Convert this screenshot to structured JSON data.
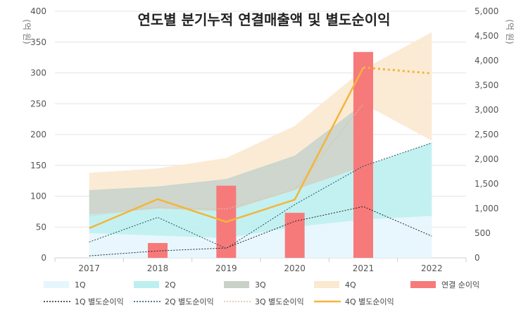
{
  "chart_data": {
    "type": "area",
    "title": "연도별 분기누적 연결매출액 및 별도순이익",
    "left_unit": "(억 원)",
    "right_unit": "(억 원)",
    "categories": [
      "2017",
      "2018",
      "2019",
      "2020",
      "2021",
      "2022"
    ],
    "ylim_left": [
      0,
      400
    ],
    "ylim_right": [
      0,
      5000
    ],
    "yticks_left": [
      "0",
      "50",
      "100",
      "150",
      "200",
      "250",
      "300",
      "350",
      "400"
    ],
    "yticks_right": [
      "0",
      "500",
      "1,000",
      "1,500",
      "2,000",
      "2,500",
      "3,000",
      "3,500",
      "4,000",
      "4,500",
      "5,000"
    ],
    "grid": "horizontal",
    "legend_position": "bottom",
    "colors": {
      "q1_area": "#e6f6fd",
      "q2_area": "#bdeff0",
      "q3_area": "#c9d2c8",
      "q4_area": "#fbe9d0",
      "bar": "#f77a7b",
      "q1_line": "#222222",
      "q2_line": "#1e4e5e",
      "q3_line": "#d9c4a6",
      "q4_line": "#f4b53a"
    },
    "stacked_areas": [
      {
        "name": "1Q",
        "values": [
          40,
          36,
          32,
          50,
          62,
          68
        ]
      },
      {
        "name": "2Q",
        "values": [
          70,
          80,
          75,
          110,
          148,
          187
        ]
      },
      {
        "name": "3Q",
        "values": [
          110,
          116,
          128,
          166,
          250,
          null
        ]
      },
      {
        "name": "4Q",
        "values": [
          138,
          145,
          162,
          214,
          306,
          366
        ]
      }
    ],
    "stacked_area_bottom_2022": [
      null,
      null,
      null,
      null,
      null,
      190
    ],
    "bars": {
      "name": "연결 순이익",
      "values": [
        0,
        24,
        117,
        73,
        334,
        0
      ]
    },
    "lines": [
      {
        "name": "1Q 별도순이익",
        "values": [
          40,
          140,
          200,
          740,
          1040,
          440
        ]
      },
      {
        "name": "2Q 별도순이익",
        "values": [
          320,
          820,
          190,
          1080,
          1860,
          2330
        ]
      },
      {
        "name": "3Q 별도순이익",
        "values": [
          850,
          1020,
          990,
          1380,
          3120,
          null
        ]
      },
      {
        "name": "4Q 별도순이익",
        "values": [
          600,
          1190,
          730,
          1180,
          3860,
          3740
        ],
        "dotted_last_segment": true
      }
    ],
    "legend": [
      {
        "label": "1Q",
        "kind": "area",
        "color": "#e6f6fd"
      },
      {
        "label": "2Q",
        "kind": "area",
        "color": "#bdeff0"
      },
      {
        "label": "3Q",
        "kind": "area",
        "color": "#c9d2c8"
      },
      {
        "label": "4Q",
        "kind": "area",
        "color": "#fbe9d0"
      },
      {
        "label": "연결 순이익",
        "kind": "bar",
        "color": "#f77a7b"
      },
      {
        "label": "1Q 별도순이익",
        "kind": "dotline",
        "color": "#222222"
      },
      {
        "label": "2Q 별도순이익",
        "kind": "dotline",
        "color": "#1e4e5e"
      },
      {
        "label": "3Q 별도순이익",
        "kind": "dotline",
        "color": "#d9c4a6"
      },
      {
        "label": "4Q 별도순이익",
        "kind": "solidline",
        "color": "#f4b53a"
      }
    ]
  }
}
